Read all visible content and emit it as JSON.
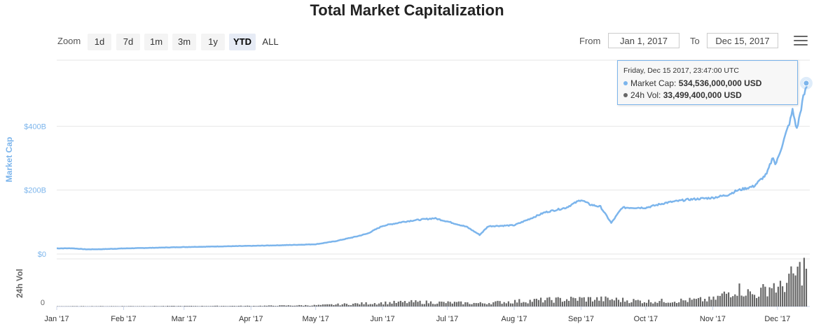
{
  "title": "Total Market Capitalization",
  "toolbar": {
    "zoom_label": "Zoom",
    "zoom_buttons": [
      "1d",
      "7d",
      "1m",
      "3m",
      "1y",
      "YTD",
      "ALL"
    ],
    "active_zoom": "YTD",
    "from_label": "From",
    "from_value": "Jan 1, 2017",
    "to_label": "To",
    "to_value": "Dec 15, 2017",
    "menu_icon": "hamburger-menu-icon"
  },
  "tooltip": {
    "date": "Friday, Dec 15 2017, 23:47:00 UTC",
    "market_cap_label": "Market Cap:",
    "market_cap_value": "534,536,000,000 USD",
    "vol_label": "24h Vol:",
    "vol_value": "33,499,400,000 USD"
  },
  "colors": {
    "market_cap": "#7cb5ec",
    "volume": "#666666",
    "grid": "#e6e6e6"
  },
  "chart_data": {
    "type": "line",
    "title": "Total Market Capitalization",
    "x_tick_labels": [
      "Jan '17",
      "Feb '17",
      "Mar '17",
      "Apr '17",
      "May '17",
      "Jun '17",
      "Jul '17",
      "Aug '17",
      "Sep '17",
      "Oct '17",
      "Nov '17",
      "Dec '17"
    ],
    "xlim": [
      "2017-01-01",
      "2017-12-15"
    ],
    "grid": true,
    "series": [
      {
        "name": "Market Cap",
        "axis_label": "Market Cap",
        "y_tick_labels": [
          "$0",
          "$200B",
          "$400B"
        ],
        "ylim": [
          0,
          600
        ],
        "unit": "billion USD",
        "x": [
          "2017-01-01",
          "2017-01-08",
          "2017-01-15",
          "2017-01-22",
          "2017-02-01",
          "2017-02-15",
          "2017-03-01",
          "2017-03-15",
          "2017-04-01",
          "2017-04-15",
          "2017-05-01",
          "2017-05-10",
          "2017-05-20",
          "2017-05-25",
          "2017-06-01",
          "2017-06-10",
          "2017-06-15",
          "2017-06-25",
          "2017-07-01",
          "2017-07-10",
          "2017-07-16",
          "2017-07-20",
          "2017-08-01",
          "2017-08-10",
          "2017-08-15",
          "2017-08-25",
          "2017-09-01",
          "2017-09-05",
          "2017-09-10",
          "2017-09-15",
          "2017-09-20",
          "2017-10-01",
          "2017-10-10",
          "2017-10-20",
          "2017-11-01",
          "2017-11-08",
          "2017-11-12",
          "2017-11-20",
          "2017-11-26",
          "2017-11-29",
          "2017-11-30",
          "2017-12-01",
          "2017-12-07",
          "2017-12-08",
          "2017-12-10",
          "2017-12-13",
          "2017-12-15"
        ],
        "values": [
          17.7,
          18.0,
          14.5,
          15.2,
          17.5,
          19.5,
          21.8,
          23.5,
          25.5,
          27.5,
          30.5,
          40,
          55,
          64,
          88,
          100,
          105,
          112,
          102,
          85,
          60,
          87,
          90,
          115,
          130,
          145,
          170,
          155,
          148,
          97,
          145,
          145,
          160,
          170,
          176,
          185,
          198,
          212,
          250,
          305,
          280,
          295,
          420,
          450,
          390,
          490,
          534.5
        ]
      },
      {
        "name": "24h Vol",
        "axis_label": "24h Vol",
        "y_tick_labels": [
          "0"
        ],
        "unit": "billion USD",
        "x": [
          "2017-01-01",
          "2017-02-01",
          "2017-03-01",
          "2017-04-01",
          "2017-05-01",
          "2017-05-25",
          "2017-06-15",
          "2017-07-01",
          "2017-07-16",
          "2017-08-01",
          "2017-08-15",
          "2017-09-01",
          "2017-09-15",
          "2017-10-01",
          "2017-10-15",
          "2017-11-01",
          "2017-11-12",
          "2017-11-20",
          "2017-11-29",
          "2017-12-01",
          "2017-12-07",
          "2017-12-10",
          "2017-12-15"
        ],
        "values": [
          0.2,
          0.3,
          0.4,
          0.5,
          1.0,
          2.5,
          3.5,
          3.0,
          2.5,
          4.0,
          5.0,
          6.0,
          5.5,
          4.0,
          4.5,
          5.5,
          14,
          9,
          17,
          13,
          22,
          26,
          33.5
        ]
      }
    ]
  }
}
